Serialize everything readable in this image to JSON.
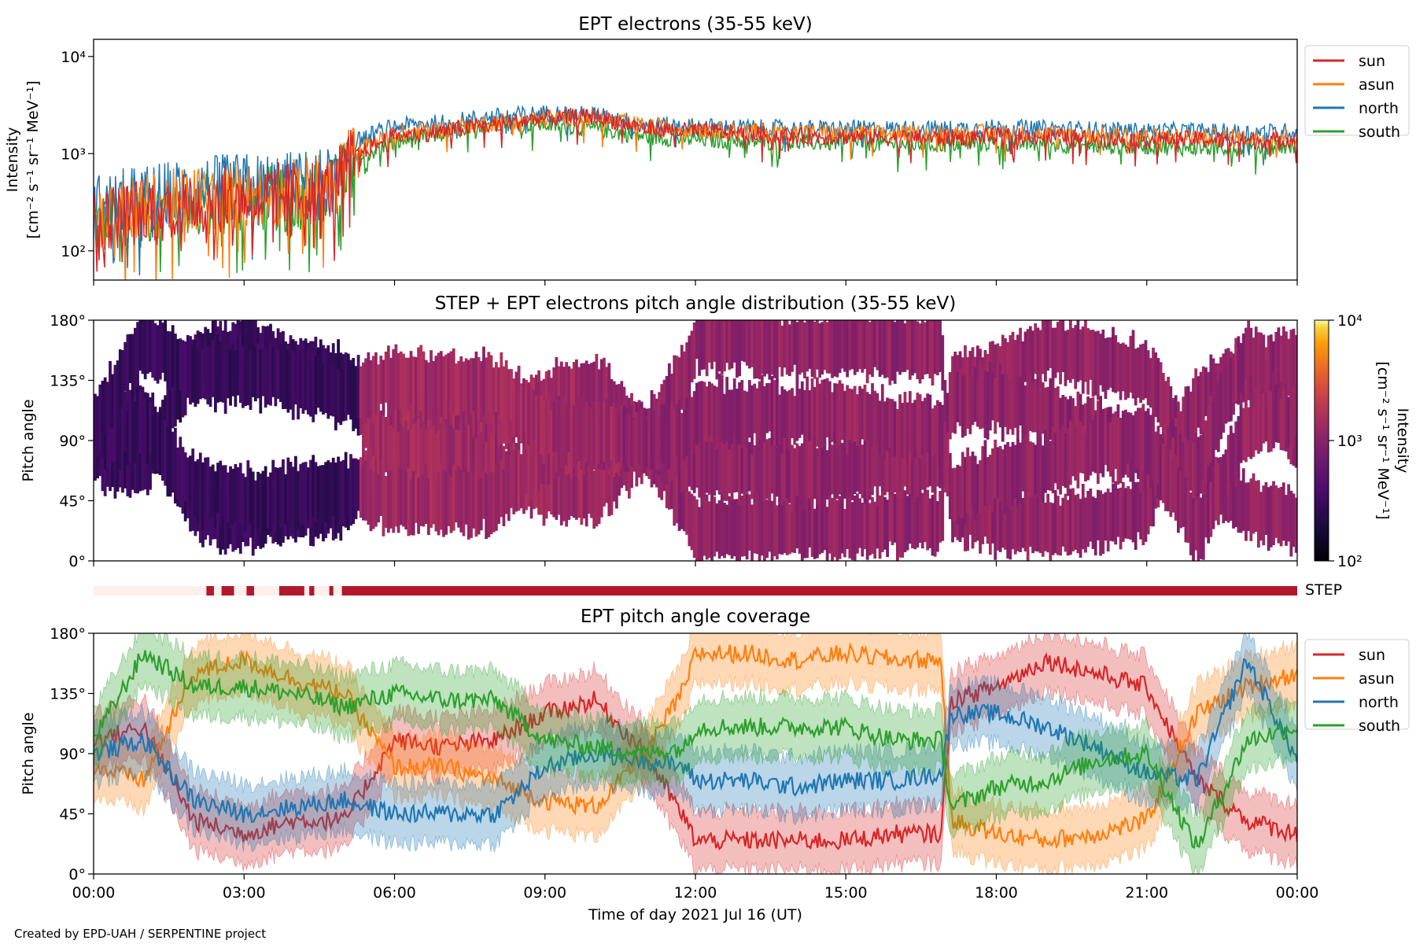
{
  "footer_text": "Created by EPD-UAH / SERPENTINE project",
  "chart_data": [
    {
      "type": "line",
      "title": "EPT electrons (35-55 keV)",
      "xlabel": "",
      "ylabel_line1": "Intensity",
      "ylabel_line2": "[cm⁻² s⁻¹ sr⁻¹ MeV⁻¹]",
      "yscale": "log",
      "ylim": [
        50,
        15000
      ],
      "yticks": [
        {
          "value": 100,
          "label": "10²"
        },
        {
          "value": 1000,
          "label": "10³"
        },
        {
          "value": 10000,
          "label": "10⁴"
        }
      ],
      "x_hours_range": [
        0,
        24
      ],
      "legend_position": "upper-right-outside",
      "x": [
        0,
        1,
        2,
        3,
        4,
        4.8,
        5.3,
        6,
        7,
        8,
        9,
        10,
        11,
        12,
        13,
        14,
        15,
        16,
        17,
        18,
        19,
        20,
        21,
        22,
        23,
        24
      ],
      "series": [
        {
          "name": "sun",
          "color": "#d62728",
          "values": [
            200,
            260,
            320,
            350,
            380,
            450,
            1000,
            1500,
            1700,
            2000,
            2300,
            2400,
            1800,
            1700,
            1600,
            1500,
            1500,
            1450,
            1450,
            1500,
            1500,
            1400,
            1400,
            1400,
            1350,
            1400
          ]
        },
        {
          "name": "asun",
          "color": "#ff7f0e",
          "values": [
            220,
            280,
            340,
            370,
            400,
            480,
            1100,
            1600,
            1800,
            2100,
            2300,
            2300,
            1900,
            1800,
            1700,
            1650,
            1600,
            1600,
            1600,
            1650,
            1600,
            1550,
            1500,
            1500,
            1450,
            1500
          ]
        },
        {
          "name": "north",
          "color": "#1f77b4",
          "values": [
            280,
            350,
            420,
            460,
            480,
            550,
            1400,
            1900,
            2100,
            2400,
            2600,
            2500,
            2000,
            1900,
            1850,
            1800,
            1800,
            1800,
            1800,
            1850,
            1800,
            1750,
            1700,
            1700,
            1650,
            1700
          ]
        },
        {
          "name": "south",
          "color": "#2ca02c",
          "values": [
            180,
            240,
            300,
            330,
            350,
            420,
            900,
            1300,
            1600,
            2100,
            2000,
            1800,
            1500,
            1400,
            1350,
            1300,
            1300,
            1250,
            1250,
            1300,
            1250,
            1200,
            1200,
            1150,
            1150,
            1200
          ]
        }
      ]
    },
    {
      "type": "heatmap",
      "title": "STEP + EPT electrons pitch angle distribution (35-55 keV)",
      "ylabel": "Pitch angle",
      "ylim": [
        0,
        180
      ],
      "yticks": [
        "0°",
        "45°",
        "90°",
        "135°",
        "180°"
      ],
      "colorbar": {
        "label_line1": "Intensity",
        "label_line2": "[cm⁻² s⁻¹ sr⁻¹ MeV⁻¹]",
        "scale": "log",
        "range": [
          100,
          10000
        ],
        "ticks": [
          {
            "value": 100,
            "label": "10²"
          },
          {
            "value": 1000,
            "label": "10³"
          },
          {
            "value": 10000,
            "label": "10⁴"
          }
        ],
        "colormap": "inferno"
      },
      "periods": [
        {
          "start_h": 0,
          "end_h": 5.3,
          "intensity": 300
        },
        {
          "start_h": 5.3,
          "end_h": 10.5,
          "intensity": 1300
        },
        {
          "start_h": 10.5,
          "end_h": 24,
          "intensity": 1100
        }
      ]
    },
    {
      "type": "bar",
      "label": "STEP",
      "segments": [
        {
          "start_h": 0,
          "end_h": 2.25,
          "on": false
        },
        {
          "start_h": 2.25,
          "end_h": 2.4,
          "on": true
        },
        {
          "start_h": 2.55,
          "end_h": 2.8,
          "on": true
        },
        {
          "start_h": 3.05,
          "end_h": 3.2,
          "on": true
        },
        {
          "start_h": 3.7,
          "end_h": 4.2,
          "on": true
        },
        {
          "start_h": 4.3,
          "end_h": 4.4,
          "on": true
        },
        {
          "start_h": 4.7,
          "end_h": 4.78,
          "on": true
        },
        {
          "start_h": 4.95,
          "end_h": 24,
          "on": true
        }
      ],
      "on_color": "#b2182b",
      "off_color": "#fdf0ec"
    },
    {
      "type": "line",
      "title": "EPT pitch angle coverage",
      "xlabel": "Time of day 2021 Jul 16 (UT)",
      "ylabel": "Pitch angle",
      "ylim": [
        0,
        180
      ],
      "yticks": [
        "0°",
        "45°",
        "90°",
        "135°",
        "180°"
      ],
      "xticks": [
        "00:00",
        "03:00",
        "06:00",
        "09:00",
        "12:00",
        "15:00",
        "18:00",
        "21:00",
        "00:00"
      ],
      "legend_position": "upper-right-outside",
      "x": [
        0,
        1,
        2,
        3,
        4,
        5,
        6,
        7,
        8,
        9,
        10,
        11,
        11.8,
        12,
        13,
        14,
        15,
        16,
        16.9,
        17.1,
        18,
        19,
        20,
        21,
        22,
        23,
        24
      ],
      "series": [
        {
          "name": "sun",
          "color": "#d62728",
          "values": [
            100,
            110,
            40,
            30,
            40,
            40,
            100,
            95,
            100,
            120,
            130,
            90,
            40,
            25,
            25,
            25,
            25,
            30,
            30,
            130,
            140,
            160,
            150,
            140,
            70,
            40,
            30
          ]
        },
        {
          "name": "asun",
          "color": "#ff7f0e",
          "values": [
            80,
            70,
            150,
            160,
            145,
            135,
            80,
            80,
            70,
            55,
            50,
            90,
            140,
            165,
            165,
            160,
            165,
            160,
            160,
            40,
            30,
            25,
            30,
            40,
            120,
            140,
            150
          ]
        },
        {
          "name": "north",
          "color": "#1f77b4",
          "values": [
            90,
            100,
            55,
            45,
            50,
            55,
            45,
            45,
            45,
            80,
            90,
            85,
            80,
            70,
            70,
            65,
            70,
            70,
            75,
            120,
            120,
            110,
            95,
            75,
            70,
            160,
            85
          ]
        },
        {
          "name": "south",
          "color": "#2ca02c",
          "values": [
            100,
            165,
            140,
            140,
            135,
            125,
            135,
            130,
            130,
            100,
            95,
            90,
            95,
            110,
            110,
            110,
            110,
            100,
            100,
            50,
            65,
            70,
            85,
            90,
            20,
            100,
            110
          ]
        }
      ]
    }
  ]
}
